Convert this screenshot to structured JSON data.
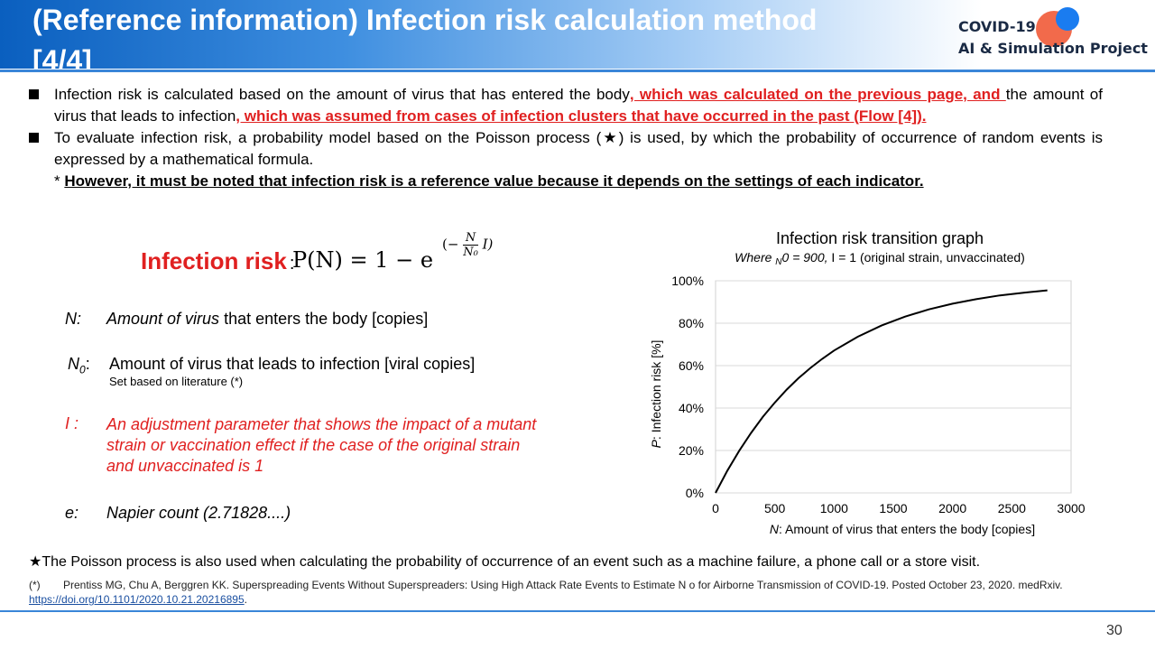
{
  "header": {
    "title": "(Reference information) Infection risk calculation method [4/4]",
    "logo_line1": "COVID-19",
    "logo_line2": "AI & Simulation Project"
  },
  "bullets": {
    "b1_part1": "Infection risk is calculated based on the amount of virus that has entered the body",
    "b1_red1": ", which was calculated on the previous page, and ",
    "b1_part2": "the amount of virus that leads to infection",
    "b1_red2": ", which was assumed from cases of infection clusters that have occurred in the past (Flow [4]).",
    "b2_part1": "To evaluate infection risk, a probability model based on the Poisson process (",
    "b2_star": "★",
    "b2_part2": ") is used, by which the probability of occurrence of random events is expressed by a mathematical formula.",
    "note_prefix": "* ",
    "note_bold": "However, it must be noted that infection risk is a reference value because it depends on the settings of each indicator."
  },
  "formula": {
    "label": "Infection risk",
    "colon": ":",
    "expr": "P(N) = 1 − e",
    "exp_open": "(−",
    "exp_num": "N",
    "exp_den": "N₀",
    "exp_close": "I)"
  },
  "definitions": {
    "n_sym": "N:",
    "n_italic": "Amount of virus",
    "n_rest": " that enters the body [copies]",
    "n0_sym": "N",
    "n0_sub": "0",
    "n0_colon": ":",
    "n0_text": "Amount of virus that leads to infection [viral copies]",
    "n0_sub_text": "Set based on literature (*)",
    "i_sym": "I :",
    "i_line1": "An adjustment parameter that shows the impact of a mutant",
    "i_line2": "strain or vaccination effect if the case of the original strain",
    "i_line3": "and unvaccinated is 1",
    "e_sym": "e:",
    "e_text": "Napier count (2.71828....)"
  },
  "chart_data": {
    "type": "line",
    "title": "Infection risk transition graph",
    "subtitle_prefix": "Where ",
    "subtitle_sub": "N",
    "subtitle_rest_italic": "0 = 900,",
    "subtitle_rest": " I = 1 (original strain, unvaccinated)",
    "xlabel_italic": "N",
    "xlabel": ": Amount of virus that enters the body [copies]",
    "ylabel_italic": "P",
    "ylabel": ": Infection risk [%]",
    "xlim": [
      0,
      3000
    ],
    "ylim": [
      0,
      100
    ],
    "x_ticks": [
      "0",
      "500",
      "1000",
      "1500",
      "2000",
      "2500",
      "3000"
    ],
    "y_ticks": [
      "0%",
      "20%",
      "40%",
      "60%",
      "80%",
      "100%"
    ],
    "grid": true,
    "series": [
      {
        "x": [
          0,
          100,
          200,
          300,
          400,
          500,
          600,
          700,
          800,
          900,
          1000,
          1200,
          1400,
          1600,
          1800,
          2000,
          2200,
          2400,
          2600,
          2800
        ],
        "y": [
          0,
          10.5,
          19.9,
          28.3,
          35.9,
          42.6,
          48.7,
          54.1,
          58.9,
          63.2,
          67.1,
          73.6,
          78.9,
          83.1,
          86.5,
          89.2,
          91.3,
          93.1,
          94.4,
          95.5
        ]
      }
    ]
  },
  "footer": {
    "poisson_star": "★",
    "poisson_text": "The Poisson process is also used when calculating the probability of occurrence of an event such as a machine failure, a phone call or a store visit.",
    "ref_mark": "(*)",
    "ref_text": "Prentiss MG, Chu A, Berggren KK. Superspreading Events Without Superspreaders: Using High Attack Rate Events to Estimate N o for Airborne Transmission of COVID-19. Posted October 23, 2020. medRxiv.",
    "ref_link": "https://doi.org/10.1101/2020.10.21.20216895",
    "ref_end": ".",
    "page_number": "30"
  }
}
